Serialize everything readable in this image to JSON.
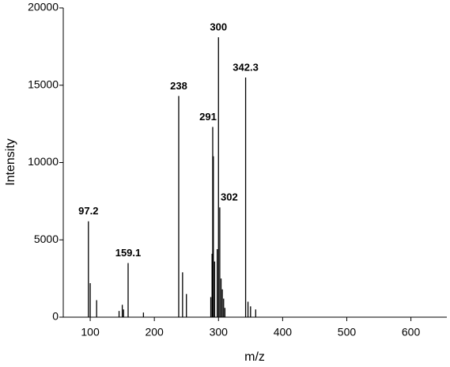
{
  "chart_data": {
    "type": "stick",
    "x_label": "m/z",
    "y_label": "Intensity",
    "xlim": [
      58,
      656
    ],
    "ylim": [
      0,
      20000
    ],
    "xticks": [
      100,
      200,
      300,
      400,
      500,
      600
    ],
    "yticks": [
      0,
      5000,
      10000,
      15000,
      20000
    ],
    "series": [
      {
        "color": "#000000",
        "x": [
          97.2,
          159.1,
          238,
          291,
          300,
          302,
          342.3
        ],
        "values": [
          6200,
          3500,
          14300,
          12300,
          18100,
          7100,
          15500
        ]
      },
      {
        "color": "#000000",
        "x": [
          100,
          110,
          145,
          150,
          152,
          183,
          244,
          250,
          288,
          290,
          292,
          294,
          298,
          304,
          306,
          308,
          310,
          346,
          350,
          358
        ],
        "values": [
          2200,
          1100,
          400,
          800,
          500,
          300,
          2900,
          1500,
          1300,
          4100,
          10400,
          3600,
          4400,
          2500,
          1800,
          1200,
          600,
          1000,
          700,
          500
        ]
      }
    ]
  }
}
